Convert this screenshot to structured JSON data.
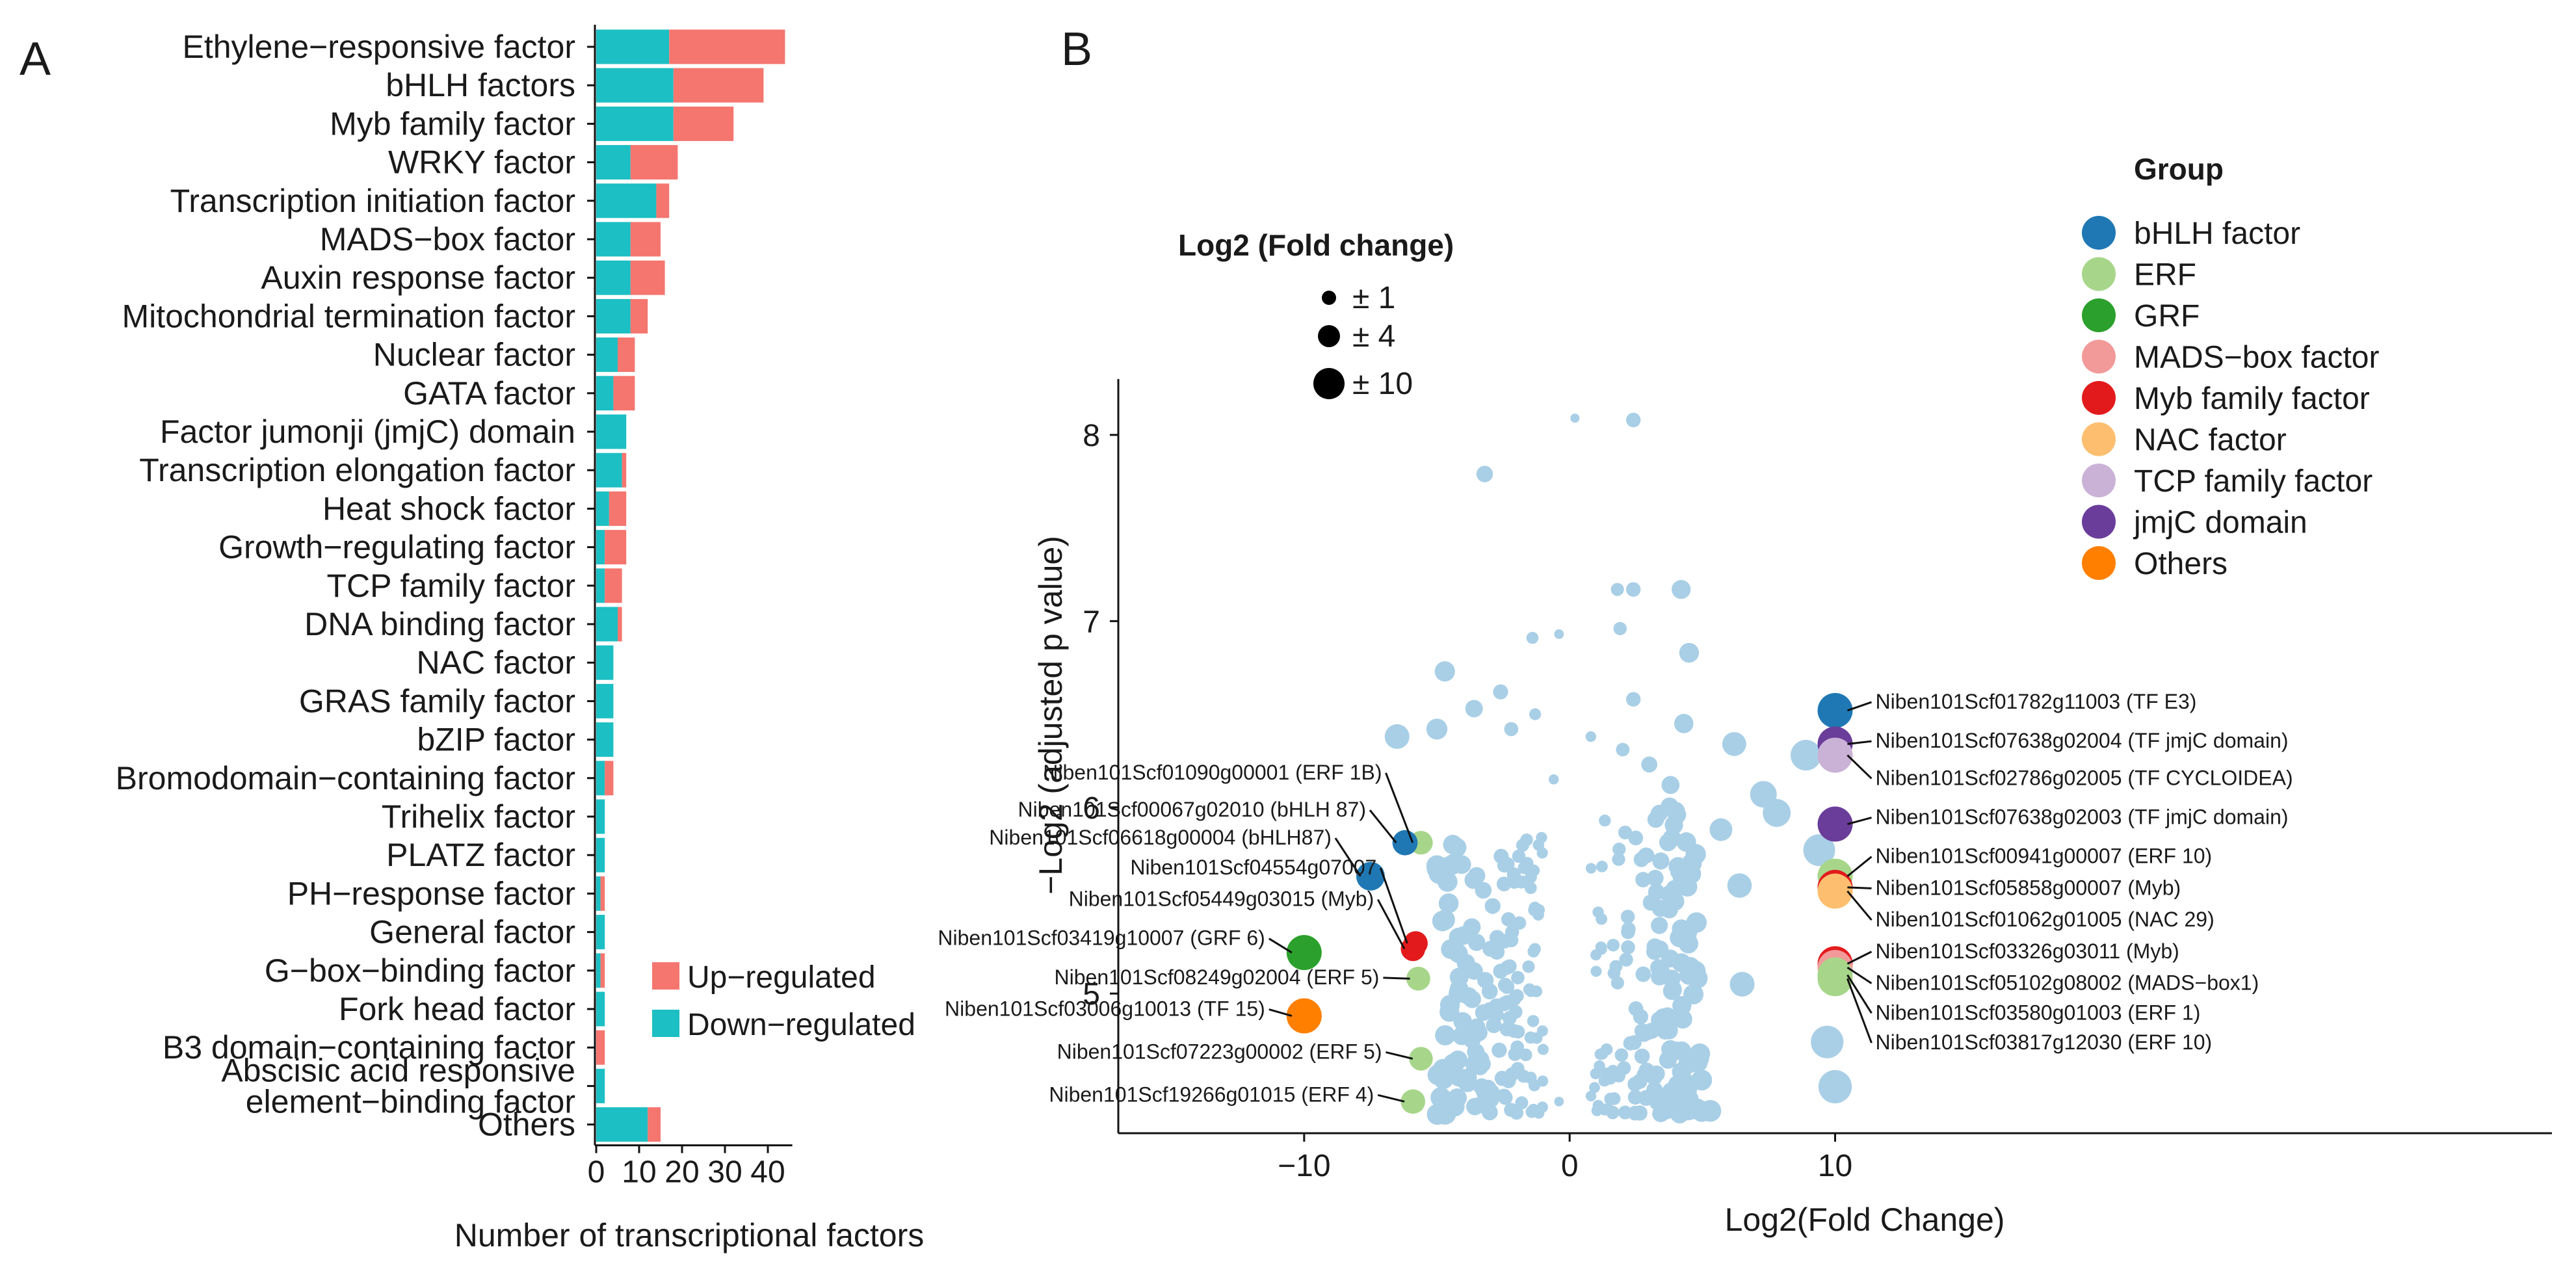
{
  "figure": {
    "panel_a_label": "A",
    "panel_b_label": "B"
  },
  "colors": {
    "up": "#f4766f",
    "down": "#1cbfc3",
    "background_point": "#a9cfe6",
    "bhlh": "#1f78b4",
    "erf": "#a7d68a",
    "grf": "#2ca02c",
    "mads": "#f29a9a",
    "myb": "#e31a1c",
    "nac": "#fdbf6f",
    "tcp": "#cab2d6",
    "jmjc": "#6a3d9a",
    "others": "#ff7f00"
  },
  "chart_data": [
    {
      "type": "bar",
      "orientation": "horizontal",
      "stacked": true,
      "title": "",
      "xlabel": "Number of transcriptional factors",
      "ylabel": "",
      "xlim": [
        0,
        46
      ],
      "xticks": [
        0,
        10,
        20,
        30,
        40
      ],
      "categories": [
        "Ethylene−responsive factor",
        "bHLH factors",
        "Myb family factor",
        "WRKY factor",
        "Transcription initiation factor",
        "MADS−box factor",
        "Auxin response factor",
        "Mitochondrial termination factor",
        "Nuclear factor",
        "GATA factor",
        "Factor jumonji (jmjC) domain",
        "Transcription elongation factor",
        "Heat shock factor",
        "Growth−regulating factor",
        "TCP family factor",
        "DNA binding factor",
        "NAC factor",
        "GRAS family factor",
        "bZIP factor",
        "Bromodomain−containing factor",
        "Trihelix factor",
        "PLATZ factor",
        "PH−response factor",
        "General factor",
        "G−box−binding factor",
        "Fork head factor",
        "B3 domain−containing factor",
        "Abscisic acid responsive\nelement−binding factor",
        "Others"
      ],
      "series": [
        {
          "name": "Down−regulated",
          "color_key": "down",
          "values": [
            17,
            18,
            18,
            8,
            14,
            8,
            8,
            8,
            5,
            4,
            7,
            6,
            3,
            2,
            2,
            5,
            4,
            4,
            4,
            2,
            2,
            2,
            1,
            2,
            1,
            2,
            0,
            2,
            12
          ]
        },
        {
          "name": "Up−regulated",
          "color_key": "up",
          "values": [
            27,
            21,
            14,
            11,
            3,
            7,
            8,
            4,
            4,
            5,
            0,
            1,
            4,
            5,
            4,
            1,
            0,
            0,
            0,
            2,
            0,
            0,
            1,
            0,
            1,
            0,
            2,
            0,
            3
          ]
        }
      ],
      "legend": {
        "position": "bottom-right",
        "entries": [
          "Up−regulated",
          "Down−regulated"
        ]
      }
    },
    {
      "type": "scatter",
      "title": "",
      "xlabel": "Log2(Fold Change)",
      "ylabel": "−Log2 (adjusted p value)",
      "xlim": [
        -17,
        37
      ],
      "ylim": [
        4.25,
        8.3
      ],
      "xticks": [
        -10,
        0,
        10
      ],
      "xtick_labels": [
        "−10",
        "0",
        "10"
      ],
      "yticks": [
        5,
        6,
        7,
        8
      ],
      "size_legend": {
        "title": "Log2 (Fold change)",
        "entries": [
          {
            "label": "± 1",
            "fc": 1
          },
          {
            "label": "± 4",
            "fc": 4
          },
          {
            "label": "± 10",
            "fc": 10
          }
        ]
      },
      "group_legend": {
        "title": "Group",
        "entries": [
          {
            "label": "bHLH factor",
            "color_key": "bhlh"
          },
          {
            "label": "ERF",
            "color_key": "erf"
          },
          {
            "label": "GRF",
            "color_key": "grf"
          },
          {
            "label": "MADS−box factor",
            "color_key": "mads"
          },
          {
            "label": "Myb family factor",
            "color_key": "myb"
          },
          {
            "label": "NAC factor",
            "color_key": "nac"
          },
          {
            "label": "TCP family factor",
            "color_key": "tcp"
          },
          {
            "label": "jmjC domain",
            "color_key": "jmjc"
          },
          {
            "label": "Others",
            "color_key": "others"
          }
        ]
      },
      "highlighted": [
        {
          "label": "Niben101Scf01090g00001 (ERF 1B)",
          "x": -5.6,
          "y": 5.81,
          "group": "erf",
          "side": "left",
          "label_y": 6.15
        },
        {
          "label": "Niben101Scf00067g02010 (bHLH 87)",
          "x": -6.2,
          "y": 5.81,
          "group": "bhlh",
          "side": "left",
          "label_y": 5.95
        },
        {
          "label": "Niben101Scf06618g00004 (bHLH87)",
          "x": -7.5,
          "y": 5.63,
          "group": "bhlh",
          "side": "left",
          "label_y": 5.8
        },
        {
          "label": "Niben101Scf04554g07007",
          "x": -5.8,
          "y": 5.27,
          "group": "myb",
          "side": "left",
          "label_y": 5.64
        },
        {
          "label": "Niben101Scf05449g03015 (Myb)",
          "x": -5.9,
          "y": 5.24,
          "group": "myb",
          "side": "left",
          "label_y": 5.47
        },
        {
          "label": "Niben101Scf03419g10007 (GRF 6)",
          "x": -10.0,
          "y": 5.22,
          "group": "grf",
          "side": "left",
          "label_y": 5.26
        },
        {
          "label": "Niben101Scf08249g02004 (ERF 5)",
          "x": -5.7,
          "y": 5.08,
          "group": "erf",
          "side": "left",
          "label_y": 5.05
        },
        {
          "label": "Niben101Scf03006g10013 (TF 15)",
          "x": -10.0,
          "y": 4.88,
          "group": "others",
          "side": "left",
          "label_y": 4.88
        },
        {
          "label": "Niben101Scf07223g00002 (ERF 5)",
          "x": -5.6,
          "y": 4.65,
          "group": "erf",
          "side": "left",
          "label_y": 4.65
        },
        {
          "label": "Niben101Scf19266g01015 (ERF 4)",
          "x": -5.9,
          "y": 4.42,
          "group": "erf",
          "side": "left",
          "label_y": 4.42
        },
        {
          "label": "Niben101Scf01782g11003 (TF E3)",
          "x": 10.0,
          "y": 6.52,
          "group": "bhlh",
          "side": "right",
          "label_y": 6.53
        },
        {
          "label": "Niben101Scf07638g02004 (TF jmjC domain)",
          "x": 10.0,
          "y": 6.34,
          "group": "jmjc",
          "side": "right",
          "label_y": 6.32
        },
        {
          "label": "Niben101Scf02786g02005 (TF CYCLOIDEA)",
          "x": 10.0,
          "y": 6.28,
          "group": "tcp",
          "side": "right",
          "label_y": 6.12
        },
        {
          "label": "Niben101Scf07638g02003 (TF jmjC domain)",
          "x": 10.0,
          "y": 5.91,
          "group": "jmjc",
          "side": "right",
          "label_y": 5.91
        },
        {
          "label": "Niben101Scf00941g00007 (ERF 10)",
          "x": 10.0,
          "y": 5.63,
          "group": "erf",
          "side": "right",
          "label_y": 5.7
        },
        {
          "label": "Niben101Scf05858g00007 (Myb)",
          "x": 10.0,
          "y": 5.57,
          "group": "myb",
          "side": "right",
          "label_y": 5.53
        },
        {
          "label": "Niben101Scf01062g01005 (NAC 29)",
          "x": 10.0,
          "y": 5.55,
          "group": "nac",
          "side": "right",
          "label_y": 5.36
        },
        {
          "label": "Niben101Scf03326g03011 (Myb)",
          "x": 10.0,
          "y": 5.16,
          "group": "myb",
          "side": "right",
          "label_y": 5.19
        },
        {
          "label": "Niben101Scf05102g08002 (MADS−box1)",
          "x": 10.0,
          "y": 5.14,
          "group": "mads",
          "side": "right",
          "label_y": 5.02
        },
        {
          "label": "Niben101Scf03580g01003 (ERF 1)",
          "x": 10.0,
          "y": 5.1,
          "group": "erf",
          "side": "right",
          "label_y": 4.86
        },
        {
          "label": "Niben101Scf03817g12030 (ERF 10)",
          "x": 10.0,
          "y": 5.08,
          "group": "erf",
          "side": "right",
          "label_y": 4.7
        }
      ],
      "background_points": [
        [
          0.2,
          8.09
        ],
        [
          2.4,
          8.08
        ],
        [
          -3.2,
          7.79
        ],
        [
          1.8,
          7.17
        ],
        [
          2.4,
          7.17
        ],
        [
          4.2,
          7.17
        ],
        [
          -1.4,
          6.91
        ],
        [
          -0.4,
          6.93
        ],
        [
          1.9,
          6.96
        ],
        [
          4.5,
          6.83
        ],
        [
          -4.7,
          6.73
        ],
        [
          -2.6,
          6.62
        ],
        [
          -3.6,
          6.53
        ],
        [
          2.4,
          6.58
        ],
        [
          -1.3,
          6.5
        ],
        [
          -2.2,
          6.42
        ],
        [
          4.3,
          6.45
        ],
        [
          6.2,
          6.34
        ],
        [
          0.8,
          6.38
        ],
        [
          2.0,
          6.31
        ],
        [
          3.0,
          6.23
        ],
        [
          -5.0,
          6.42
        ],
        [
          -6.5,
          6.38
        ],
        [
          -0.6,
          6.15
        ],
        [
          3.8,
          6.12
        ],
        [
          7.3,
          6.07
        ],
        [
          8.9,
          6.28
        ],
        [
          7.8,
          5.97
        ],
        [
          5.7,
          5.88
        ],
        [
          -4.4,
          5.8
        ],
        [
          4.6,
          5.7
        ],
        [
          6.4,
          5.58
        ],
        [
          -2.9,
          5.47
        ],
        [
          2.2,
          5.33
        ],
        [
          4.5,
          5.1
        ],
        [
          -4.2,
          5.0
        ],
        [
          6.5,
          5.05
        ],
        [
          -3.5,
          4.82
        ],
        [
          9.7,
          4.74
        ],
        [
          10.0,
          4.5
        ],
        [
          9.4,
          5.77
        ],
        [
          -4.6,
          5.6
        ],
        [
          3.6,
          4.8
        ],
        [
          -1.0,
          4.7
        ],
        [
          -2.3,
          4.53
        ],
        [
          1.4,
          4.57
        ],
        [
          3.2,
          4.45
        ],
        [
          -0.4,
          4.42
        ],
        [
          5.3,
          4.37
        ],
        [
          -3.6,
          4.62
        ],
        [
          -1.6,
          5.7
        ],
        [
          1.2,
          5.4
        ],
        [
          -2.6,
          5.12
        ],
        [
          2.7,
          5.72
        ]
      ],
      "cloud": {
        "left": {
          "x_range": [
            -5.0,
            -1.0
          ],
          "y_range": [
            4.35,
            5.85
          ],
          "count": 150
        },
        "right": {
          "x_range": [
            0.8,
            5.0
          ],
          "y_range": [
            4.35,
            6.05
          ],
          "count": 150
        }
      }
    }
  ]
}
